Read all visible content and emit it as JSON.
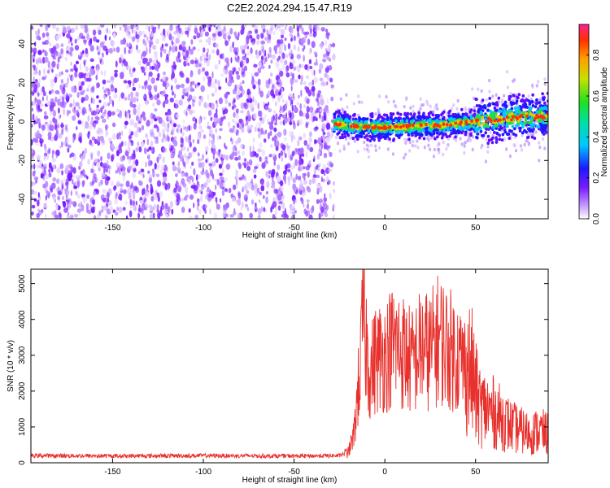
{
  "title": "C2E2.2024.294.15.47.R19",
  "colors": {
    "spectrogram_noise": "#7a1bff",
    "snr_line": "#e8302c",
    "axes": "#000000",
    "background": "#ffffff"
  },
  "chart_data": [
    {
      "type": "heatmap",
      "title": "C2E2.2024.294.15.47.R19",
      "xlabel": "Height of straight line (km)",
      "ylabel": "Frequency (Hz)",
      "xlim": [
        -195,
        90
      ],
      "ylim": [
        -50,
        50
      ],
      "x_ticks": [
        -150,
        -100,
        -50,
        0,
        50
      ],
      "y_ticks": [
        -40,
        -20,
        0,
        20,
        40
      ],
      "noise_region_x": [
        -195,
        -28
      ],
      "signal_region_x": [
        -28,
        90
      ],
      "signal_track": {
        "x": [
          -28,
          -20,
          -10,
          0,
          10,
          20,
          30,
          40,
          50,
          60,
          70,
          80,
          90
        ],
        "y": [
          -1,
          -2,
          -3,
          -3,
          -2.5,
          -2,
          -2,
          -1,
          0,
          1,
          2,
          2.5,
          3
        ]
      },
      "colorbar": {
        "label": "Normalized spectral amplitude",
        "range": [
          0,
          0.95
        ],
        "ticks": [
          0.0,
          0.2,
          0.4,
          0.6,
          0.8
        ]
      },
      "grid": false
    },
    {
      "type": "line",
      "xlabel": "Height of straight line (km)",
      "ylabel": "SNR (10 * v/v)",
      "xlim": [
        -195,
        90
      ],
      "ylim": [
        0,
        5400
      ],
      "x_ticks": [
        -150,
        -100,
        -50,
        0,
        50
      ],
      "y_ticks": [
        0,
        1000,
        2000,
        3000,
        4000,
        5000
      ],
      "series": [
        {
          "x": [
            -195,
            -150,
            -100,
            -50,
            -25,
            -20,
            -17,
            -15,
            -13,
            -12,
            -10,
            -8,
            -5,
            0,
            5,
            10,
            15,
            20,
            25,
            30,
            35,
            40,
            45,
            48,
            50,
            52,
            55,
            60,
            65,
            70,
            75,
            80,
            85,
            90
          ],
          "y": [
            200,
            190,
            200,
            190,
            200,
            300,
            800,
            1900,
            3000,
            4300,
            3200,
            2500,
            2900,
            3000,
            3300,
            3100,
            2800,
            3200,
            3100,
            3500,
            3200,
            3000,
            2700,
            2500,
            2000,
            1600,
            1500,
            1400,
            1200,
            1000,
            900,
            800,
            900,
            800
          ]
        }
      ],
      "grid": false
    }
  ]
}
